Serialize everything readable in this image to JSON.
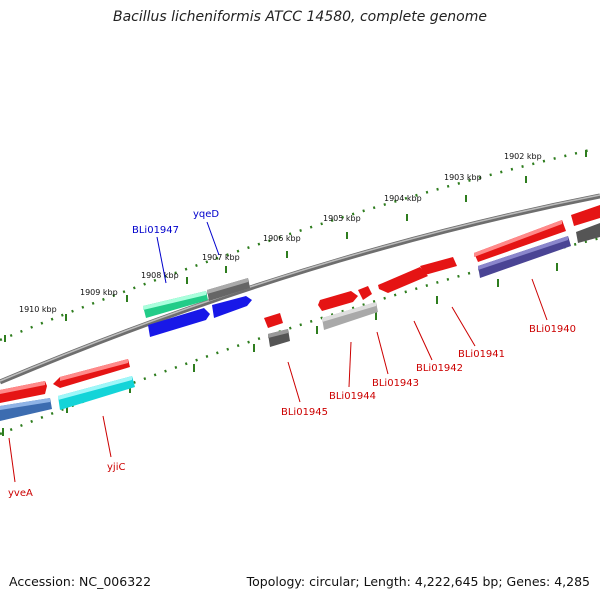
{
  "title": "Bacillus licheniformis ATCC 14580, complete genome",
  "footer": {
    "accession": "Accession: NC_006322",
    "summary": "Topology: circular; Length: 4,222,645 bp; Genes: 4,285"
  },
  "ticks": [
    {
      "label": "1910 kbp"
    },
    {
      "label": "1909 kbp"
    },
    {
      "label": "1908 kbp"
    },
    {
      "label": "1907 kbp"
    },
    {
      "label": "1906 kbp"
    },
    {
      "label": "1905 kbp"
    },
    {
      "label": "1904 kbp"
    },
    {
      "label": "1903 kbp"
    },
    {
      "label": "1902 kbp"
    }
  ],
  "gene_labels": {
    "blue": [
      "BLi01947",
      "yqeD"
    ],
    "red": [
      "yveA",
      "yjiC",
      "BLi01945",
      "BLi01944",
      "BLi01943",
      "BLi01942",
      "BLi01941",
      "BLi01940"
    ]
  },
  "colors": {
    "backbone": "#888888",
    "tick": "#2e7d1e",
    "cds": "#ee1111",
    "label_red": "#cc0000",
    "label_blue": "#0000cc"
  }
}
